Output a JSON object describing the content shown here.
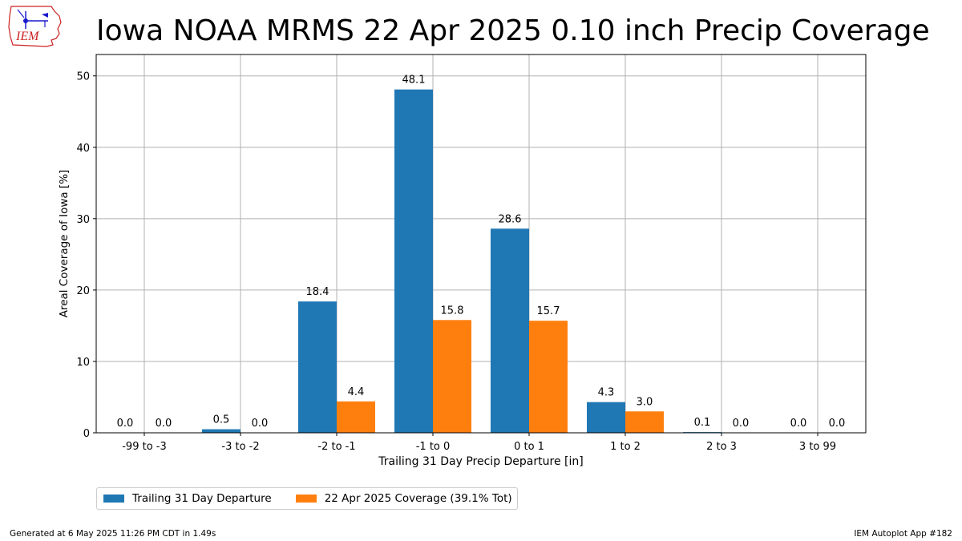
{
  "header": {
    "title": "Iowa NOAA MRMS 22 Apr 2025 0.10 inch Precip Coverage",
    "logo_text": "IEM"
  },
  "colors": {
    "series1": "#1f77b4",
    "series2": "#ff7f0e",
    "grid": "#b0b0b0",
    "logo_red": "#cc2222",
    "logo_blue": "#1a1acc"
  },
  "chart_data": {
    "type": "bar",
    "categories": [
      "-99 to -3",
      "-3 to -2",
      "-2 to -1",
      "-1 to 0",
      "0 to 1",
      "1 to 2",
      "2 to 3",
      "3 to 99"
    ],
    "series": [
      {
        "name": "Trailing 31 Day Departure",
        "values": [
          0.0,
          0.5,
          18.4,
          48.1,
          28.6,
          4.3,
          0.1,
          0.0
        ],
        "labels": [
          "0.0",
          "0.5",
          "18.4",
          "48.1",
          "28.6",
          "4.3",
          "0.1",
          "0.0"
        ]
      },
      {
        "name": "22 Apr 2025 Coverage (39.1% Tot)",
        "values": [
          0.0,
          0.0,
          4.4,
          15.8,
          15.7,
          3.0,
          0.0,
          0.0
        ],
        "labels": [
          "0.0",
          "0.0",
          "4.4",
          "15.8",
          "15.7",
          "3.0",
          "0.0",
          "0.0"
        ]
      }
    ],
    "xlabel": "Trailing 31 Day Precip Departure [in]",
    "ylabel": "Areal Coverage of Iowa [%]",
    "ylim": [
      0,
      53
    ],
    "yticks": [
      0,
      10,
      20,
      30,
      40,
      50
    ],
    "grid": true,
    "legend_placement": "bottom-left"
  },
  "footer": {
    "generated": "Generated at 6 May 2025 11:26 PM CDT in 1.49s",
    "app": "IEM Autoplot App #182"
  }
}
